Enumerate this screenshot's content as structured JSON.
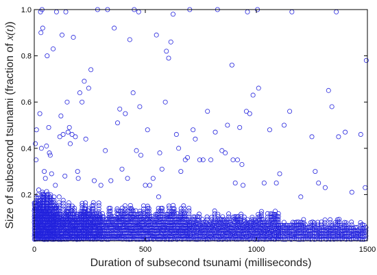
{
  "chart_data": {
    "type": "scatter",
    "title": "",
    "xlabel": "Duration of subsecond tsunami (milliseconds)",
    "ylabel_prefix": "Size of subsecond tsunami (fraction of ",
    "ylabel_var": "x(t)",
    "ylabel_suffix": ")",
    "xlim": [
      0,
      1500
    ],
    "ylim": [
      0,
      1.0
    ],
    "xticks": [
      0,
      500,
      1000,
      1500
    ],
    "xtick_labels": [
      "0",
      "500",
      "1000",
      "1500"
    ],
    "yticks": [
      0.2,
      0.4,
      0.6,
      0.8,
      1.0
    ],
    "ytick_labels": [
      "0.2",
      "0.4",
      "0.6",
      "0.8",
      "1.0"
    ],
    "grid": false,
    "marker": "open-circle",
    "marker_color": "#2222dd",
    "sparse_points": [
      [
        5,
        0.42
      ],
      [
        8,
        0.35
      ],
      [
        10,
        0.48
      ],
      [
        20,
        0.22
      ],
      [
        25,
        0.55
      ],
      [
        28,
        0.99
      ],
      [
        30,
        0.9
      ],
      [
        32,
        0.4
      ],
      [
        35,
        1.0
      ],
      [
        38,
        0.92
      ],
      [
        45,
        0.3
      ],
      [
        50,
        0.27
      ],
      [
        55,
        0.41
      ],
      [
        58,
        0.8
      ],
      [
        65,
        0.49
      ],
      [
        68,
        0.38
      ],
      [
        72,
        0.37
      ],
      [
        78,
        0.29
      ],
      [
        85,
        0.83
      ],
      [
        95,
        0.24
      ],
      [
        100,
        0.99
      ],
      [
        112,
        0.19
      ],
      [
        115,
        0.45
      ],
      [
        120,
        0.54
      ],
      [
        125,
        0.89
      ],
      [
        130,
        0.46
      ],
      [
        138,
        0.28
      ],
      [
        142,
        0.99
      ],
      [
        148,
        0.6
      ],
      [
        152,
        0.47
      ],
      [
        158,
        0.49
      ],
      [
        162,
        0.42
      ],
      [
        170,
        0.46
      ],
      [
        176,
        0.88
      ],
      [
        185,
        0.45
      ],
      [
        195,
        0.3
      ],
      [
        198,
        0.27
      ],
      [
        205,
        0.64
      ],
      [
        215,
        0.6
      ],
      [
        225,
        0.69
      ],
      [
        232,
        0.44
      ],
      [
        245,
        0.66
      ],
      [
        255,
        0.74
      ],
      [
        270,
        0.26
      ],
      [
        285,
        1.0
      ],
      [
        300,
        0.24
      ],
      [
        320,
        0.39
      ],
      [
        330,
        1.0
      ],
      [
        345,
        0.26
      ],
      [
        360,
        0.92
      ],
      [
        375,
        0.51
      ],
      [
        385,
        0.57
      ],
      [
        395,
        0.31
      ],
      [
        410,
        0.55
      ],
      [
        420,
        0.27
      ],
      [
        430,
        0.87
      ],
      [
        445,
        0.64
      ],
      [
        450,
        1.0
      ],
      [
        460,
        0.39
      ],
      [
        470,
        0.99
      ],
      [
        475,
        0.58
      ],
      [
        480,
        0.37
      ],
      [
        500,
        0.24
      ],
      [
        510,
        0.48
      ],
      [
        520,
        0.24
      ],
      [
        535,
        0.27
      ],
      [
        550,
        0.89
      ],
      [
        560,
        0.19
      ],
      [
        565,
        0.38
      ],
      [
        575,
        0.31
      ],
      [
        590,
        0.6
      ],
      [
        595,
        0.82
      ],
      [
        605,
        0.79
      ],
      [
        615,
        0.86
      ],
      [
        625,
        0.98
      ],
      [
        640,
        0.46
      ],
      [
        650,
        0.4
      ],
      [
        660,
        0.3
      ],
      [
        680,
        0.35
      ],
      [
        690,
        0.36
      ],
      [
        700,
        1.0
      ],
      [
        715,
        0.48
      ],
      [
        725,
        0.44
      ],
      [
        745,
        0.35
      ],
      [
        760,
        0.35
      ],
      [
        780,
        0.56
      ],
      [
        795,
        0.35
      ],
      [
        815,
        0.47
      ],
      [
        825,
        1.0
      ],
      [
        845,
        0.39
      ],
      [
        860,
        0.38
      ],
      [
        870,
        0.5
      ],
      [
        890,
        0.76
      ],
      [
        895,
        0.35
      ],
      [
        905,
        0.25
      ],
      [
        915,
        0.35
      ],
      [
        925,
        0.49
      ],
      [
        935,
        0.33
      ],
      [
        940,
        0.24
      ],
      [
        955,
        0.56
      ],
      [
        960,
        0.99
      ],
      [
        970,
        0.55
      ],
      [
        985,
        0.63
      ],
      [
        1005,
        1.0
      ],
      [
        1010,
        0.66
      ],
      [
        1035,
        0.25
      ],
      [
        1060,
        0.48
      ],
      [
        1090,
        0.25
      ],
      [
        1105,
        0.29
      ],
      [
        1125,
        0.5
      ],
      [
        1150,
        0.56
      ],
      [
        1160,
        0.99
      ],
      [
        1200,
        0.19
      ],
      [
        1250,
        0.45
      ],
      [
        1265,
        0.3
      ],
      [
        1280,
        0.25
      ],
      [
        1310,
        0.23
      ],
      [
        1325,
        0.65
      ],
      [
        1340,
        0.58
      ],
      [
        1360,
        0.99
      ],
      [
        1370,
        0.45
      ],
      [
        1400,
        0.47
      ],
      [
        1430,
        0.21
      ],
      [
        1470,
        0.46
      ],
      [
        1490,
        0.23
      ],
      [
        1495,
        0.78
      ]
    ],
    "dense_band": [
      {
        "x_from": 0,
        "x_to": 100,
        "step": 4,
        "y_max": 0.22
      },
      {
        "x_from": 100,
        "x_to": 300,
        "step": 5,
        "y_max": 0.18
      },
      {
        "x_from": 300,
        "x_to": 700,
        "step": 6,
        "y_max": 0.16
      },
      {
        "x_from": 700,
        "x_to": 1100,
        "step": 7,
        "y_max": 0.13
      },
      {
        "x_from": 1100,
        "x_to": 1500,
        "step": 8,
        "y_max": 0.1
      }
    ],
    "dense_y_step": 0.012
  }
}
